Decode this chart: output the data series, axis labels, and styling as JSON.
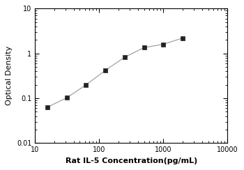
{
  "x_data": [
    15.6,
    31.25,
    62.5,
    125,
    250,
    500,
    1000,
    2000
  ],
  "y_data": [
    0.063,
    0.102,
    0.198,
    0.42,
    0.82,
    1.35,
    1.6,
    2.2
  ],
  "xlabel": "Rat IL-5 Concentration(pg/mL)",
  "ylabel": "Optical Density",
  "xlim": [
    10,
    10000
  ],
  "ylim": [
    0.01,
    10
  ],
  "marker": "s",
  "marker_color": "#222222",
  "line_color": "#aaaaaa",
  "marker_size": 4.5,
  "line_width": 1.0,
  "title": "",
  "xlabel_fontsize": 8,
  "ylabel_fontsize": 8,
  "tick_fontsize": 7
}
